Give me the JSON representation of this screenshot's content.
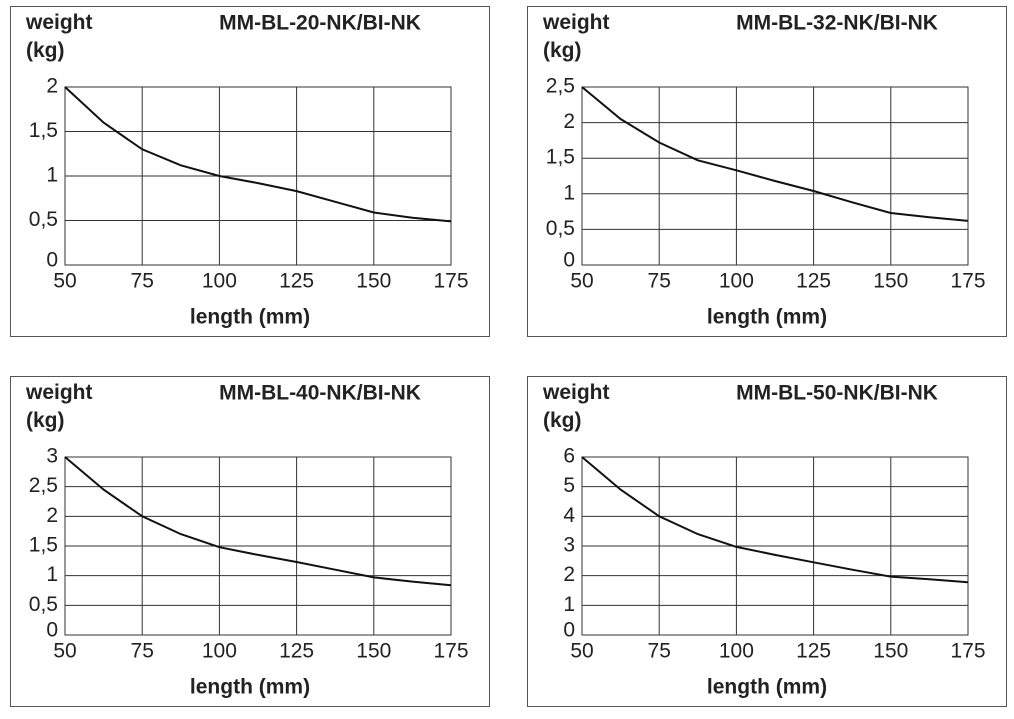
{
  "chart_data": [
    {
      "type": "line",
      "title": "MM-BL-20-NK/BI-NK",
      "ylabel": "weight (kg)",
      "xlabel": "length (mm)",
      "color": "#111111",
      "grid": true,
      "x": [
        50,
        62.5,
        75,
        87.5,
        100,
        112.5,
        125,
        137.5,
        150,
        162.5,
        175
      ],
      "values": [
        2,
        1.6,
        1.3,
        1.12,
        1.0,
        0.92,
        0.83,
        0.71,
        0.59,
        0.53,
        0.49
      ],
      "xlim": [
        50,
        175
      ],
      "xticks": [
        50,
        75,
        100,
        125,
        150,
        175
      ],
      "ylim": [
        0,
        2
      ],
      "yticks": [
        0,
        {
          "value": 0.5,
          "label": "0,5"
        },
        1,
        {
          "value": 1.5,
          "label": "1,5"
        },
        2
      ]
    },
    {
      "type": "line",
      "title": "MM-BL-32-NK/BI-NK",
      "ylabel": "weight (kg)",
      "xlabel": "length (mm)",
      "color": "#111111",
      "grid": true,
      "x": [
        50,
        62.5,
        75,
        87.5,
        100,
        112.5,
        125,
        137.5,
        150,
        162.5,
        175
      ],
      "values": [
        2.5,
        2.05,
        1.72,
        1.47,
        1.33,
        1.18,
        1.04,
        0.88,
        0.73,
        0.67,
        0.62
      ],
      "xlim": [
        50,
        175
      ],
      "xticks": [
        50,
        75,
        100,
        125,
        150,
        175
      ],
      "ylim": [
        0,
        2.5
      ],
      "yticks": [
        0,
        {
          "value": 0.5,
          "label": "0,5"
        },
        1,
        {
          "value": 1.5,
          "label": "1,5"
        },
        2,
        {
          "value": 2.5,
          "label": "2,5"
        }
      ]
    },
    {
      "type": "line",
      "title": "MM-BL-40-NK/BI-NK",
      "ylabel": "weight (kg)",
      "xlabel": "length (mm)",
      "color": "#111111",
      "grid": true,
      "x": [
        50,
        62.5,
        75,
        87.5,
        100,
        112.5,
        125,
        137.5,
        150,
        162.5,
        175
      ],
      "values": [
        3,
        2.45,
        2.0,
        1.7,
        1.48,
        1.35,
        1.23,
        1.1,
        0.97,
        0.9,
        0.84
      ],
      "xlim": [
        50,
        175
      ],
      "xticks": [
        50,
        75,
        100,
        125,
        150,
        175
      ],
      "ylim": [
        0,
        3
      ],
      "yticks": [
        0,
        {
          "value": 0.5,
          "label": "0,5"
        },
        1,
        {
          "value": 1.5,
          "label": "1,5"
        },
        2,
        {
          "value": 2.5,
          "label": "2,5"
        },
        3
      ]
    },
    {
      "type": "line",
      "title": "MM-BL-50-NK/BI-NK",
      "ylabel": "weight (kg)",
      "xlabel": "length (mm)",
      "color": "#111111",
      "grid": true,
      "x": [
        50,
        62.5,
        75,
        87.5,
        100,
        112.5,
        125,
        137.5,
        150,
        162.5,
        175
      ],
      "values": [
        6,
        4.9,
        4.0,
        3.4,
        2.97,
        2.7,
        2.45,
        2.2,
        1.97,
        1.88,
        1.78
      ],
      "xlim": [
        50,
        175
      ],
      "xticks": [
        50,
        75,
        100,
        125,
        150,
        175
      ],
      "ylim": [
        0,
        6
      ],
      "yticks": [
        0,
        1,
        2,
        3,
        4,
        5,
        6
      ]
    }
  ]
}
